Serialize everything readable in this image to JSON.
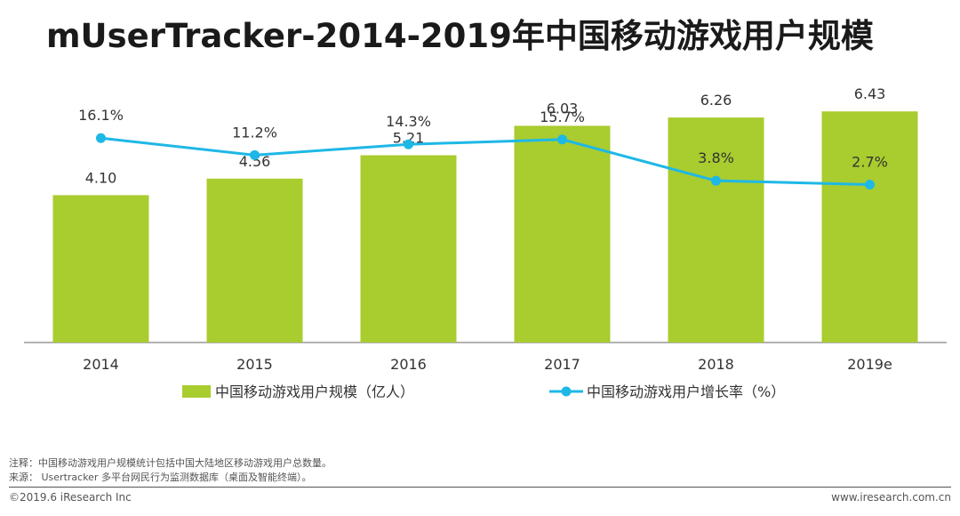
{
  "title": "mUserTracker-2014-2019年中国移动游戏用户规模",
  "chart_data": {
    "type": "bar+line",
    "categories": [
      "2014",
      "2015",
      "2016",
      "2017",
      "2018",
      "2019e"
    ],
    "series": [
      {
        "name": "中国移动游戏用户规模（亿人）",
        "type": "bar",
        "values": [
          4.1,
          4.56,
          5.21,
          6.03,
          6.26,
          6.43
        ],
        "labels": [
          "4.10",
          "4.56",
          "5.21",
          "6.03",
          "6.26",
          "6.43"
        ],
        "color": "#a9cc2f"
      },
      {
        "name": "中国移动游戏用户增长率（%）",
        "type": "line",
        "values": [
          16.1,
          11.2,
          14.3,
          15.7,
          3.8,
          2.7
        ],
        "labels": [
          "16.1%",
          "11.2%",
          "14.3%",
          "15.7%",
          "3.8%",
          "2.7%"
        ],
        "color": "#1eb8e6"
      }
    ],
    "bar_axis_range": [
      0,
      7.0
    ],
    "line_axis_range": [
      -100,
      100
    ],
    "legend_position": "bottom"
  },
  "notes": {
    "note": "注释：中国移动游戏用户规模统计包括中国大陆地区移动游戏用户总数量。",
    "source": "来源：  Usertracker 多平台网民行为监测数据库（桌面及智能终端）。"
  },
  "footer": {
    "copyright": "©2019.6 iResearch Inc",
    "website": "www.iresearch.com.cn"
  }
}
